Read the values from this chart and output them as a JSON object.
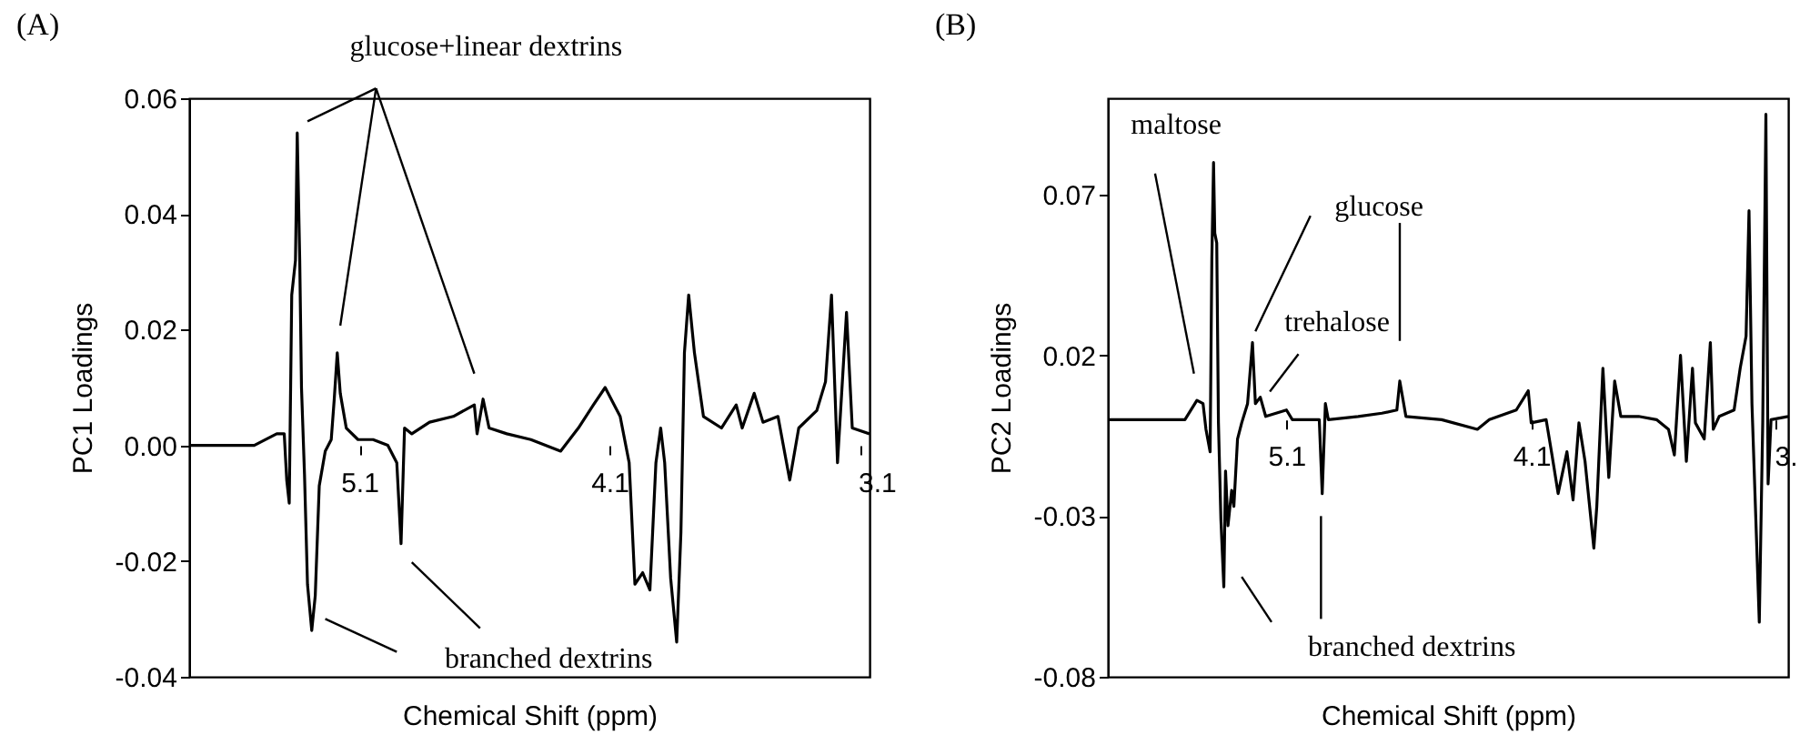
{
  "chart_data": [
    {
      "type": "line",
      "title": "(A)",
      "xlabel": "Chemical Shift (ppm)",
      "ylabel": "PC1 Loadings",
      "xlim": [
        5.78,
        3.06
      ],
      "xticks": [
        5.1,
        4.1,
        3.1
      ],
      "ylim": [
        -0.04,
        0.06
      ],
      "yticks": [
        -0.04,
        -0.02,
        {
          "value": 0,
          "label": "0.00"
        },
        0.02,
        0.04,
        0.06
      ],
      "annotations": [
        "glucose+linear dextrins",
        "branched dextrins"
      ],
      "line_style": "solid",
      "series": [
        {
          "color": "#000000",
          "x": [
            5.78,
            5.52,
            5.43,
            5.4,
            5.39,
            5.38,
            5.37,
            5.355,
            5.348,
            5.338,
            5.331,
            5.319,
            5.307,
            5.29,
            5.276,
            5.26,
            5.236,
            5.212,
            5.2,
            5.188,
            5.176,
            5.152,
            5.105,
            5.045,
            4.986,
            4.95,
            4.933,
            4.919,
            4.89,
            4.819,
            4.724,
            4.64,
            4.629,
            4.605,
            4.581,
            4.51,
            4.414,
            4.295,
            4.224,
            4.164,
            4.117,
            4.057,
            4.021,
            3.998,
            3.967,
            3.938,
            3.914,
            3.895,
            3.879,
            3.855,
            3.831,
            3.814,
            3.8,
            3.783,
            3.76,
            3.724,
            3.652,
            3.593,
            3.569,
            3.521,
            3.486,
            3.426,
            3.379,
            3.343,
            3.271,
            3.236,
            3.212,
            3.188,
            3.152,
            3.129,
            3.06
          ],
          "values": [
            0,
            0,
            0.002,
            0.002,
            -0.006,
            -0.01,
            0.026,
            0.032,
            0.054,
            0.032,
            0.01,
            -0.005,
            -0.024,
            -0.032,
            -0.026,
            -0.007,
            -0.001,
            0.001,
            0.008,
            0.016,
            0.009,
            0.003,
            0.001,
            0.001,
            0,
            -0.003,
            -0.017,
            0.003,
            0.002,
            0.004,
            0.005,
            0.007,
            0.002,
            0.008,
            0.003,
            0.002,
            0.001,
            -0.001,
            0.003,
            0.007,
            0.01,
            0.005,
            -0.003,
            -0.024,
            -0.022,
            -0.025,
            -0.003,
            0.003,
            -0.003,
            -0.023,
            -0.034,
            -0.015,
            0.016,
            0.026,
            0.016,
            0.005,
            0.003,
            0.007,
            0.003,
            0.009,
            0.004,
            0.005,
            -0.006,
            0.003,
            0.006,
            0.011,
            0.026,
            -0.003,
            0.023,
            0.003,
            0.002
          ]
        }
      ]
    },
    {
      "type": "line",
      "title": "(B)",
      "xlabel": "Chemical Shift (ppm)",
      "ylabel": "PC2 Loadings",
      "xlim": [
        5.83,
        3.05
      ],
      "xticks": [
        5.1,
        4.1,
        {
          "value": 3.1,
          "label": "3."
        }
      ],
      "ylim": [
        -0.08,
        0.1
      ],
      "yticks": [
        -0.08,
        -0.03,
        0.02,
        0.07
      ],
      "annotations": [
        "maltose",
        "glucose",
        "trehalose",
        "branched dextrins"
      ],
      "line_style": "solid",
      "series": [
        {
          "color": "#000000",
          "x": [
            5.83,
            5.515,
            5.466,
            5.441,
            5.429,
            5.412,
            5.405,
            5.398,
            5.393,
            5.385,
            5.378,
            5.368,
            5.356,
            5.349,
            5.339,
            5.324,
            5.315,
            5.3,
            5.283,
            5.259,
            5.239,
            5.227,
            5.207,
            5.185,
            5.1,
            5.076,
            4.966,
            4.954,
            4.941,
            4.929,
            4.807,
            4.71,
            4.649,
            4.637,
            4.612,
            4.466,
            4.32,
            4.271,
            4.161,
            4.112,
            4.1,
            4.039,
            4.015,
            3.99,
            3.954,
            3.929,
            3.905,
            3.88,
            3.844,
            3.832,
            3.807,
            3.783,
            3.759,
            3.734,
            3.661,
            3.588,
            3.539,
            3.515,
            3.49,
            3.466,
            3.441,
            3.429,
            3.393,
            3.368,
            3.356,
            3.332,
            3.271,
            3.246,
            3.222,
            3.21,
            3.198,
            3.168,
            3.154,
            3.141,
            3.132,
            3.12,
            3.05
          ],
          "values": [
            0,
            0,
            0.006,
            0.005,
            -0.003,
            -0.01,
            0.05,
            0.08,
            0.058,
            0.055,
            -0.001,
            -0.031,
            -0.052,
            -0.016,
            -0.033,
            -0.022,
            -0.027,
            -0.006,
            -0.001,
            0.005,
            0.024,
            0.005,
            0.007,
            0.001,
            0.003,
            0,
            0,
            -0.023,
            0.005,
            0,
            0.001,
            0.002,
            0.003,
            0.012,
            0.001,
            0,
            -0.003,
            0,
            0.003,
            0.009,
            -0.001,
            0,
            -0.011,
            -0.023,
            -0.01,
            -0.025,
            -0.001,
            -0.013,
            -0.04,
            -0.027,
            0.016,
            -0.018,
            0.012,
            0.001,
            0.001,
            0,
            -0.003,
            -0.011,
            0.02,
            -0.013,
            0.016,
            -0.001,
            -0.006,
            0.024,
            -0.003,
            0.001,
            0.003,
            0.016,
            0.026,
            0.065,
            0.005,
            -0.063,
            -0.001,
            0.095,
            -0.02,
            0,
            0.001
          ]
        }
      ]
    }
  ]
}
